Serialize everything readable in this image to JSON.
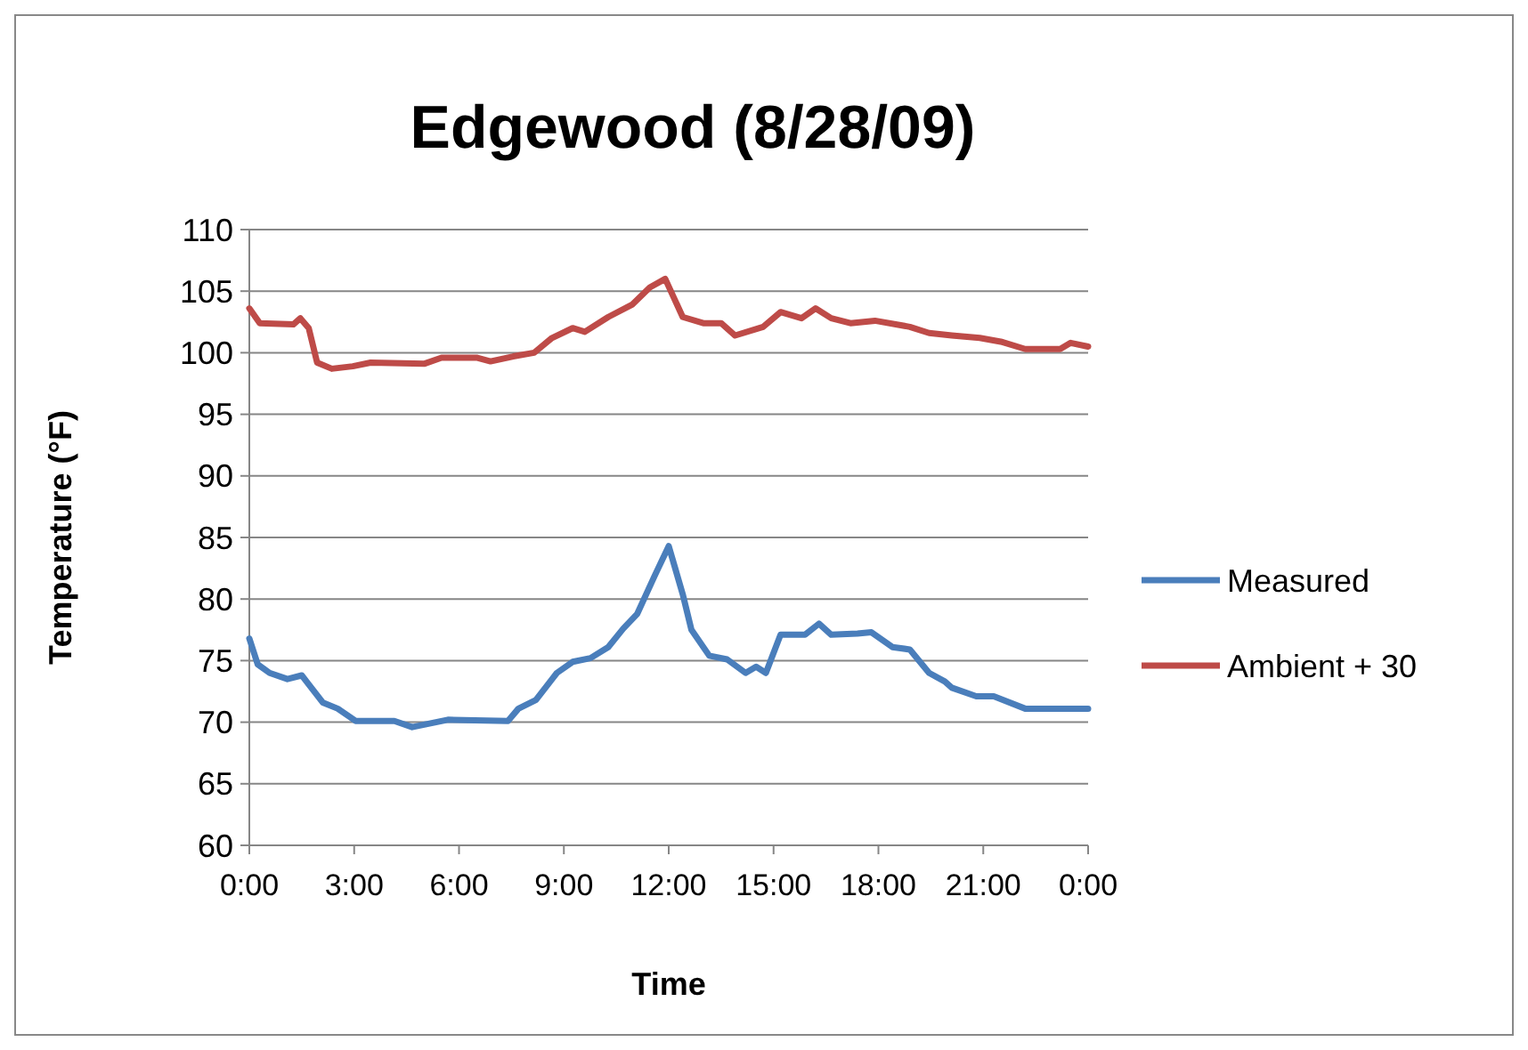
{
  "chart_data": {
    "type": "line",
    "title": "Edgewood  (8/28/09)",
    "xlabel": "Time",
    "ylabel": "Temperature (°F)",
    "xlim": [
      0,
      24
    ],
    "xticks": [
      {
        "value": 0,
        "label": "0:00"
      },
      {
        "value": 3,
        "label": "3:00"
      },
      {
        "value": 6,
        "label": "6:00"
      },
      {
        "value": 9,
        "label": "9:00"
      },
      {
        "value": 12,
        "label": "12:00"
      },
      {
        "value": 15,
        "label": "15:00"
      },
      {
        "value": 18,
        "label": "18:00"
      },
      {
        "value": 21,
        "label": "21:00"
      },
      {
        "value": 24,
        "label": "0:00"
      }
    ],
    "ylim": [
      60,
      110
    ],
    "yticks": [
      60,
      65,
      70,
      75,
      80,
      85,
      90,
      95,
      100,
      105,
      110
    ],
    "grid": "y",
    "legend": "right",
    "marker": "none",
    "line_style": "solid",
    "series": [
      {
        "name": "Measured",
        "color": "#4a7ebb",
        "x": [
          0,
          0.24,
          0.58,
          1.09,
          1.5,
          2.1,
          2.53,
          3.04,
          4.15,
          4.66,
          5.68,
          7.4,
          7.7,
          8.2,
          8.8,
          9.25,
          9.76,
          10.27,
          10.7,
          11.1,
          11.6,
          12,
          12.4,
          12.65,
          13.16,
          13.67,
          14.2,
          14.5,
          14.78,
          15.2,
          15.9,
          16.3,
          16.65,
          17.4,
          17.8,
          18.4,
          18.9,
          19.45,
          19.9,
          20.1,
          20.8,
          21.3,
          22.2,
          24
        ],
        "values": [
          76.8,
          74.7,
          74,
          73.5,
          73.8,
          71.6,
          71.1,
          70.1,
          70.1,
          69.6,
          70.2,
          70.1,
          71.1,
          71.8,
          74,
          74.9,
          75.2,
          76.1,
          77.6,
          78.8,
          81.9,
          84.3,
          80.4,
          77.5,
          75.4,
          75.1,
          74,
          74.5,
          74,
          77.1,
          77.1,
          78,
          77.1,
          77.2,
          77.3,
          76.1,
          75.9,
          74,
          73.3,
          72.8,
          72.1,
          72.1,
          71.1,
          71.1
        ]
      },
      {
        "name": "Ambient + 30",
        "color": "#be4b48",
        "x": [
          0,
          0.3,
          1.26,
          1.46,
          1.7,
          1.94,
          2.36,
          2.96,
          3.47,
          5,
          5.5,
          6.5,
          6.9,
          7.55,
          8.15,
          8.66,
          9.25,
          9.6,
          10.27,
          10.95,
          11.46,
          11.9,
          12.4,
          12.99,
          13.5,
          13.9,
          14.7,
          15.2,
          15.8,
          16.2,
          16.65,
          17.2,
          17.9,
          18.9,
          19.45,
          20.1,
          20.9,
          21.5,
          22.2,
          23.2,
          23.5,
          24
        ],
        "values": [
          103.6,
          102.4,
          102.3,
          102.8,
          102,
          99.2,
          98.7,
          98.9,
          99.2,
          99.1,
          99.6,
          99.6,
          99.3,
          99.7,
          100,
          101.2,
          102,
          101.7,
          102.9,
          103.9,
          105.3,
          106,
          102.9,
          102.4,
          102.4,
          101.4,
          102.1,
          103.3,
          102.8,
          103.6,
          102.8,
          102.4,
          102.6,
          102.1,
          101.6,
          101.4,
          101.2,
          100.9,
          100.3,
          100.3,
          100.8,
          100.5
        ]
      }
    ]
  }
}
